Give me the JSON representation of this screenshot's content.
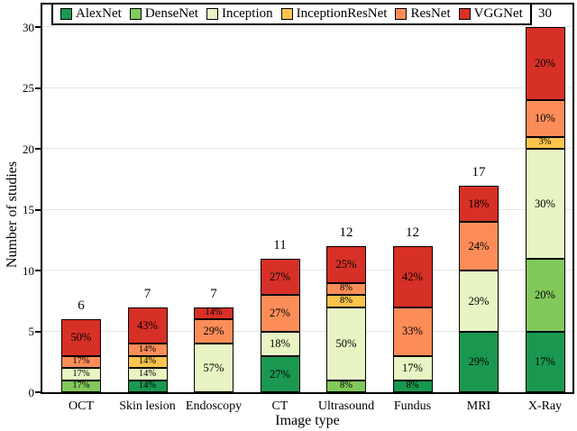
{
  "figure": {
    "background": "#ffffff",
    "axis_color": "#000000",
    "gridline_color": "#e4e4e4"
  },
  "chart_data": {
    "type": "bar",
    "stacked": true,
    "title": "",
    "xlabel": "Image type",
    "ylabel": "Number of studies",
    "ylim": [
      0,
      30
    ],
    "yticks": [
      0,
      5,
      10,
      15,
      20,
      25,
      30
    ],
    "grid": true,
    "legend_position": "top-left-inside",
    "categories": [
      "OCT",
      "Skin lesion",
      "Endoscopy",
      "CT",
      "Ultrasound",
      "Fundus",
      "MRI",
      "X-Ray"
    ],
    "totals": [
      6,
      7,
      7,
      11,
      12,
      12,
      17,
      30
    ],
    "series": [
      {
        "name": "AlexNet",
        "color": "#1a9850",
        "values": [
          0,
          1,
          0,
          3,
          0,
          1,
          5,
          5
        ],
        "pct": [
          "",
          "14%",
          "",
          "27%",
          "",
          "8%",
          "29%",
          "17%"
        ]
      },
      {
        "name": "DenseNet",
        "color": "#82c95b",
        "values": [
          1,
          0,
          0,
          0,
          1,
          0,
          0,
          6
        ],
        "pct": [
          "17%",
          "",
          "",
          "",
          "8%",
          "",
          "",
          "20%"
        ]
      },
      {
        "name": "Inception",
        "color": "#e8f4c3",
        "values": [
          1,
          1,
          4,
          2,
          6,
          2,
          5,
          9
        ],
        "pct": [
          "17%",
          "14%",
          "57%",
          "18%",
          "50%",
          "17%",
          "29%",
          "30%"
        ]
      },
      {
        "name": "InceptionResNet",
        "color": "#fcc44c",
        "values": [
          0,
          1,
          0,
          0,
          1,
          0,
          0,
          1
        ],
        "pct": [
          "",
          "14%",
          "",
          "",
          "8%",
          "",
          "",
          "3%"
        ]
      },
      {
        "name": "ResNet",
        "color": "#fc8d59",
        "values": [
          1,
          1,
          2,
          3,
          1,
          4,
          4,
          3
        ],
        "pct": [
          "17%",
          "14%",
          "29%",
          "27%",
          "8%",
          "33%",
          "24%",
          "10%"
        ]
      },
      {
        "name": "VGGNet",
        "color": "#d73027",
        "values": [
          3,
          3,
          1,
          3,
          3,
          5,
          3,
          6
        ],
        "pct": [
          "50%",
          "43%",
          "14%",
          "27%",
          "25%",
          "42%",
          "18%",
          "20%"
        ]
      }
    ]
  }
}
